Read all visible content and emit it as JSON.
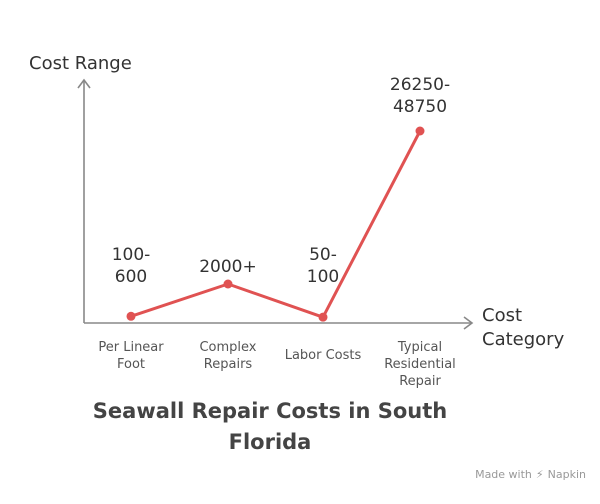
{
  "chart_data": {
    "type": "line",
    "title": "Seawall Repair Costs in South Florida",
    "xlabel": "Cost Category",
    "ylabel": "Cost Range",
    "categories": [
      "Per Linear Foot",
      "Complex Repairs",
      "Labor Costs",
      "Typical Residential Repair"
    ],
    "category_lines": [
      [
        "Per Linear",
        "Foot"
      ],
      [
        "Complex",
        "Repairs"
      ],
      [
        "Labor Costs"
      ],
      [
        "Typical",
        "Residential",
        "Repair"
      ]
    ],
    "data_labels": [
      [
        "100-",
        "600"
      ],
      [
        "2000+"
      ],
      [
        "50-",
        "100"
      ],
      [
        "26250-",
        "48750"
      ]
    ],
    "series": [
      {
        "values": [
          100,
          2000,
          50,
          26250
        ],
        "ranges": [
          [
            100,
            600
          ],
          [
            2000,
            null
          ],
          [
            50,
            100
          ],
          [
            26250,
            48750
          ]
        ],
        "color": "#e05252"
      }
    ],
    "grid": false,
    "legend": "none"
  },
  "footer": {
    "prefix": "Made with",
    "brand": "Napkin",
    "icon": "napkin-logo-icon"
  }
}
